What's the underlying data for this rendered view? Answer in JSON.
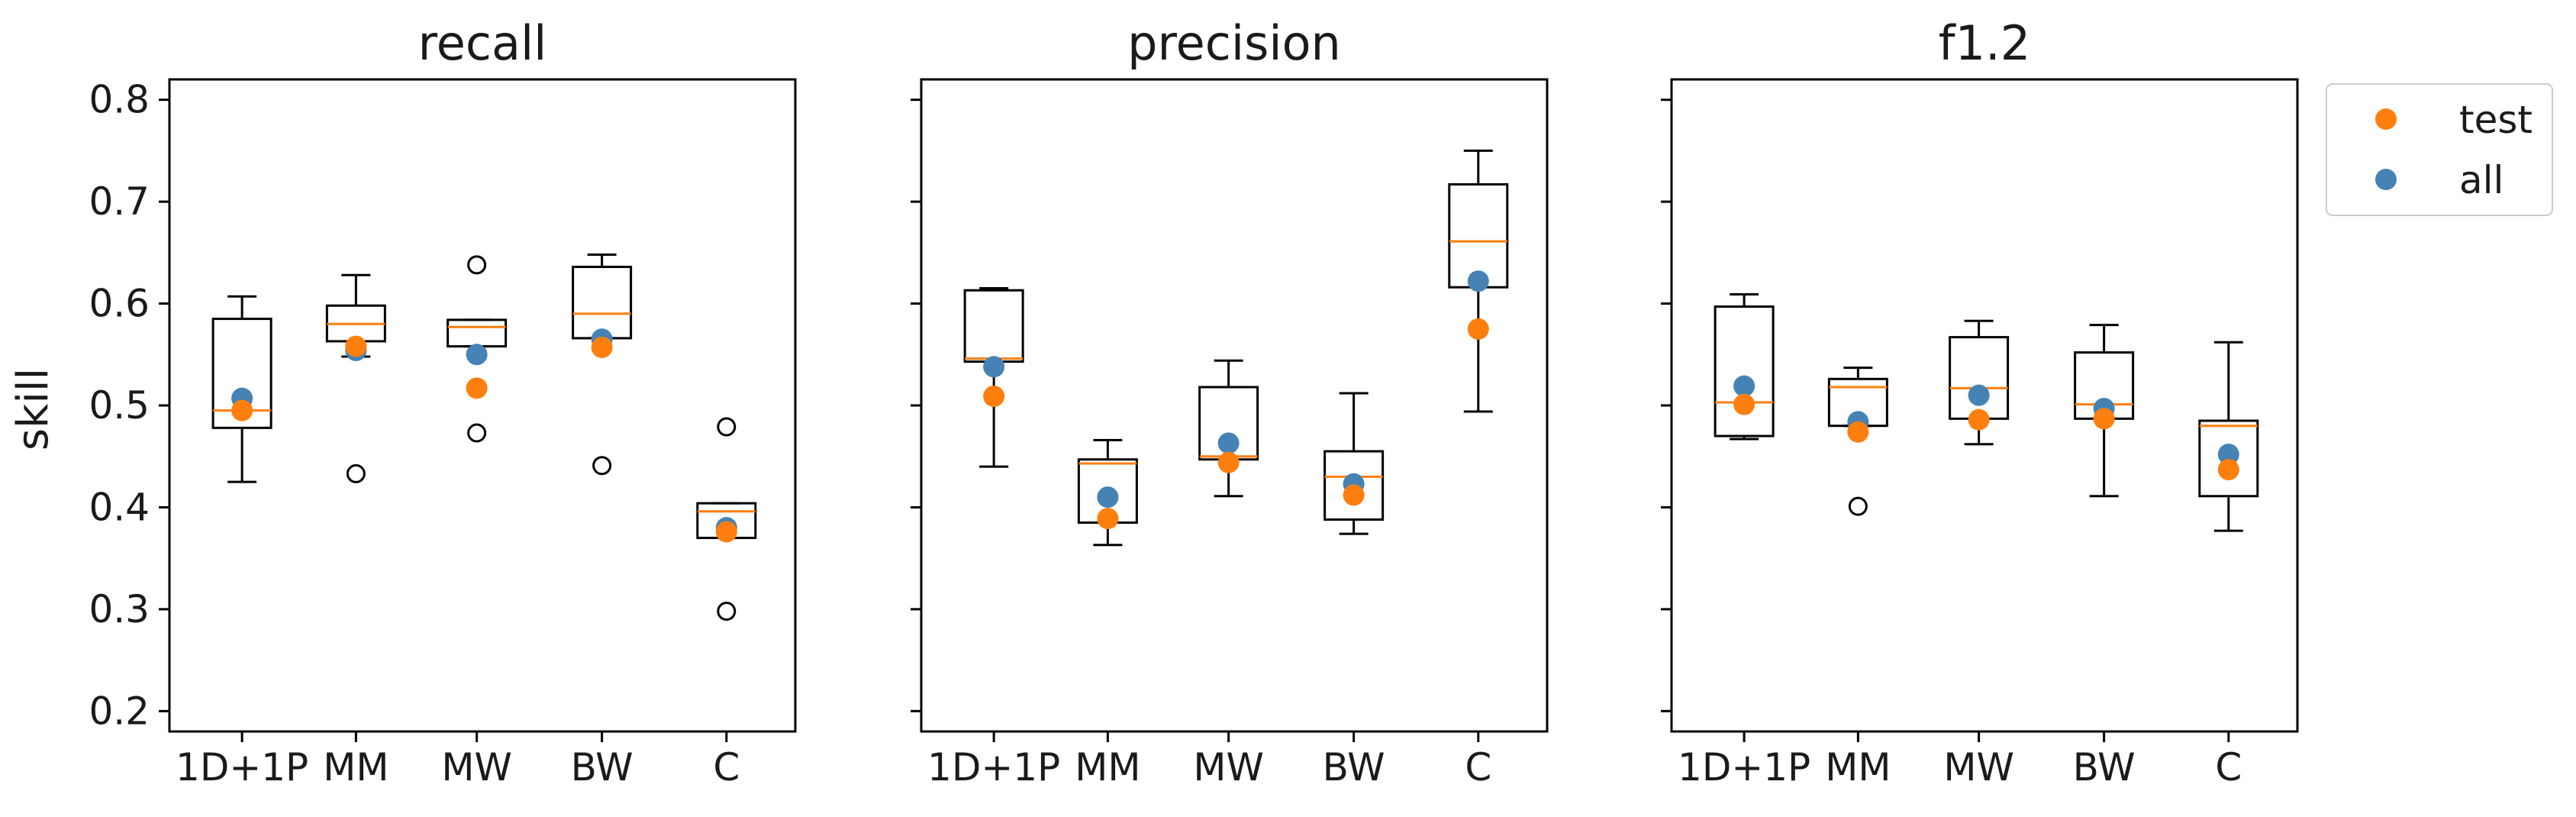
{
  "chart_data": {
    "type": "box",
    "ylabel": "skill",
    "ylim": [
      0.18,
      0.82
    ],
    "yticks": [
      "0.8",
      "0.7",
      "0.6",
      "0.5",
      "0.4",
      "0.3",
      "0.2"
    ],
    "ytick_values": [
      0.8,
      0.7,
      0.6,
      0.5,
      0.4,
      0.3,
      0.2
    ],
    "categories": [
      "1D+1P",
      "MM",
      "MW",
      "BW",
      "C"
    ],
    "grid": false,
    "legend": {
      "placement": "outside-top-right",
      "entries": [
        {
          "label": "test",
          "color": "#ff7f0e"
        },
        {
          "label": "all",
          "color": "#4682b4"
        }
      ]
    },
    "colors": {
      "median": "#ff7f0e",
      "test": "#ff7f0e",
      "all": "#4682b4",
      "box": "#000000"
    },
    "panels": [
      {
        "title": "recall",
        "boxes": [
          {
            "q1": 0.478,
            "median": 0.495,
            "q3": 0.585,
            "whisker_low": 0.425,
            "whisker_high": 0.607,
            "outliers": []
          },
          {
            "q1": 0.563,
            "median": 0.58,
            "q3": 0.598,
            "whisker_low": 0.548,
            "whisker_high": 0.628,
            "outliers": [
              0.433
            ]
          },
          {
            "q1": 0.558,
            "median": 0.577,
            "q3": 0.584,
            "whisker_low": 0.558,
            "whisker_high": 0.584,
            "outliers": [
              0.638,
              0.473
            ]
          },
          {
            "q1": 0.566,
            "median": 0.59,
            "q3": 0.636,
            "whisker_low": 0.566,
            "whisker_high": 0.648,
            "outliers": [
              0.441
            ]
          },
          {
            "q1": 0.37,
            "median": 0.396,
            "q3": 0.404,
            "whisker_low": 0.37,
            "whisker_high": 0.404,
            "outliers": [
              0.479,
              0.298
            ]
          }
        ],
        "test": [
          0.495,
          0.558,
          0.517,
          0.557,
          0.376
        ],
        "all": [
          0.507,
          0.554,
          0.55,
          0.565,
          0.38
        ]
      },
      {
        "title": "precision",
        "boxes": [
          {
            "q1": 0.543,
            "median": 0.546,
            "q3": 0.613,
            "whisker_low": 0.44,
            "whisker_high": 0.615,
            "outliers": []
          },
          {
            "q1": 0.385,
            "median": 0.443,
            "q3": 0.447,
            "whisker_low": 0.363,
            "whisker_high": 0.466,
            "outliers": []
          },
          {
            "q1": 0.447,
            "median": 0.45,
            "q3": 0.518,
            "whisker_low": 0.411,
            "whisker_high": 0.544,
            "outliers": []
          },
          {
            "q1": 0.388,
            "median": 0.43,
            "q3": 0.455,
            "whisker_low": 0.374,
            "whisker_high": 0.512,
            "outliers": []
          },
          {
            "q1": 0.616,
            "median": 0.661,
            "q3": 0.717,
            "whisker_low": 0.494,
            "whisker_high": 0.75,
            "outliers": []
          }
        ],
        "test": [
          0.509,
          0.389,
          0.444,
          0.412,
          0.575
        ],
        "all": [
          0.538,
          0.41,
          0.463,
          0.423,
          0.622
        ]
      },
      {
        "title": "f1.2",
        "boxes": [
          {
            "q1": 0.47,
            "median": 0.503,
            "q3": 0.597,
            "whisker_low": 0.467,
            "whisker_high": 0.609,
            "outliers": []
          },
          {
            "q1": 0.48,
            "median": 0.518,
            "q3": 0.526,
            "whisker_low": 0.48,
            "whisker_high": 0.537,
            "outliers": [
              0.401
            ]
          },
          {
            "q1": 0.487,
            "median": 0.517,
            "q3": 0.567,
            "whisker_low": 0.462,
            "whisker_high": 0.583,
            "outliers": []
          },
          {
            "q1": 0.487,
            "median": 0.501,
            "q3": 0.552,
            "whisker_low": 0.411,
            "whisker_high": 0.579,
            "outliers": []
          },
          {
            "q1": 0.411,
            "median": 0.48,
            "q3": 0.485,
            "whisker_low": 0.377,
            "whisker_high": 0.562,
            "outliers": []
          }
        ],
        "test": [
          0.501,
          0.474,
          0.486,
          0.487,
          0.437
        ],
        "all": [
          0.519,
          0.484,
          0.51,
          0.497,
          0.452
        ]
      }
    ]
  }
}
